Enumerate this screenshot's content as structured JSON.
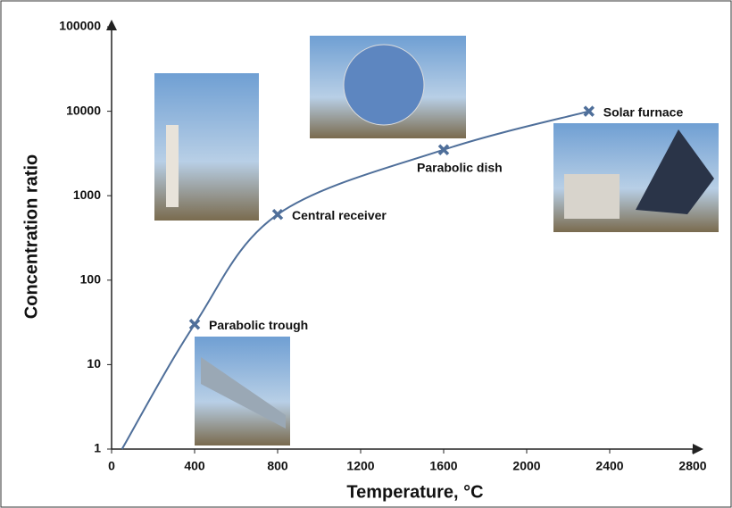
{
  "chart_data": {
    "type": "line",
    "log_y": true,
    "x_label": "Temperature, °C",
    "y_label": "Concentration ratio",
    "xlim": [
      0,
      2800
    ],
    "xticks": [
      0,
      400,
      800,
      1200,
      1600,
      2000,
      2400,
      2800
    ],
    "ylim": [
      1,
      100000
    ],
    "yticks": [
      1,
      10,
      100,
      1000,
      10000,
      100000
    ],
    "series": [
      {
        "color": "#4f6f9a",
        "x": [
          50,
          400,
          800,
          1600,
          2300
        ],
        "values": [
          1,
          30,
          600,
          3500,
          10000
        ],
        "point_labels": [
          null,
          "Parabolic trough",
          "Central receiver",
          "Parabolic dish",
          "Solar furnace"
        ]
      }
    ]
  }
}
